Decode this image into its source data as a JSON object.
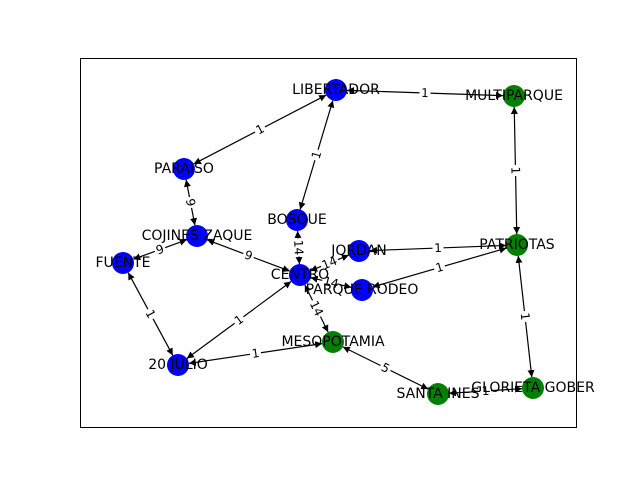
{
  "colors": {
    "blue": "#0000ff",
    "green": "#008000",
    "edge": "#000000"
  },
  "nodes": [
    {
      "id": "LIBERTADOR",
      "label": "LIBERTADOR",
      "color": "blue"
    },
    {
      "id": "MULTIPARQUE",
      "label": "MULTIPARQUE",
      "color": "green"
    },
    {
      "id": "PARAISO",
      "label": "PARAISO",
      "color": "blue"
    },
    {
      "id": "BOSQUE",
      "label": "BOSQUE",
      "color": "blue"
    },
    {
      "id": "COJINES",
      "label": "COJINES ZAQUE",
      "color": "blue"
    },
    {
      "id": "FUENTE",
      "label": "FUENTE",
      "color": "blue"
    },
    {
      "id": "JORDAN",
      "label": "JORDAN",
      "color": "blue"
    },
    {
      "id": "PATRIOTAS",
      "label": "PATRIOTAS",
      "color": "green"
    },
    {
      "id": "CENTRO",
      "label": "CENTRO",
      "color": "blue"
    },
    {
      "id": "PARQUERODEO",
      "label": "PARQUE RODEO",
      "color": "blue"
    },
    {
      "id": "MESOPOTAMIA",
      "label": "MESOPOTAMIA",
      "color": "green"
    },
    {
      "id": "20JULIO",
      "label": "20 JULIO",
      "color": "blue"
    },
    {
      "id": "SANTAINES",
      "label": "SANTA INES",
      "color": "green"
    },
    {
      "id": "GLORIETA",
      "label": "GLORIETA GOBER",
      "color": "green"
    }
  ],
  "edges": [
    {
      "from": "LIBERTADOR",
      "to": "MULTIPARQUE",
      "weight": "1"
    },
    {
      "from": "LIBERTADOR",
      "to": "PARAISO",
      "weight": "1"
    },
    {
      "from": "LIBERTADOR",
      "to": "BOSQUE",
      "weight": "1"
    },
    {
      "from": "MULTIPARQUE",
      "to": "PATRIOTAS",
      "weight": "1"
    },
    {
      "from": "PARAISO",
      "to": "COJINES",
      "weight": "9"
    },
    {
      "from": "COJINES",
      "to": "FUENTE",
      "weight": "9"
    },
    {
      "from": "COJINES",
      "to": "CENTRO",
      "weight": "9"
    },
    {
      "from": "BOSQUE",
      "to": "CENTRO",
      "weight": "14"
    },
    {
      "from": "FUENTE",
      "to": "20JULIO",
      "weight": "1"
    },
    {
      "from": "CENTRO",
      "to": "20JULIO",
      "weight": "1"
    },
    {
      "from": "CENTRO",
      "to": "JORDAN",
      "weight": "14"
    },
    {
      "from": "CENTRO",
      "to": "PARQUERODEO",
      "weight": "14"
    },
    {
      "from": "CENTRO",
      "to": "MESOPOTAMIA",
      "weight": "14"
    },
    {
      "from": "JORDAN",
      "to": "PATRIOTAS",
      "weight": "1"
    },
    {
      "from": "PARQUERODEO",
      "to": "PATRIOTAS",
      "weight": "1"
    },
    {
      "from": "PATRIOTAS",
      "to": "GLORIETA",
      "weight": "1"
    },
    {
      "from": "20JULIO",
      "to": "MESOPOTAMIA",
      "weight": "1"
    },
    {
      "from": "MESOPOTAMIA",
      "to": "SANTAINES",
      "weight": "5"
    },
    {
      "from": "SANTAINES",
      "to": "GLORIETA",
      "weight": "1"
    }
  ]
}
